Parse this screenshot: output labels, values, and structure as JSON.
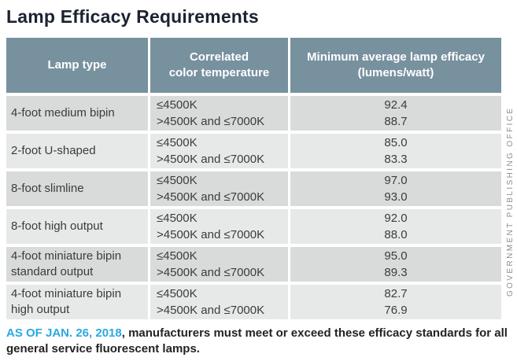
{
  "title": "Lamp Efficacy Requirements",
  "table": {
    "headers": [
      "Lamp type",
      "Correlated\ncolor temperature",
      "Minimum average lamp efficacy\n(lumens/watt)"
    ],
    "rows": [
      {
        "lamp_type": "4-foot medium bipin",
        "temps": [
          "≤4500K",
          ">4500K and ≤7000K"
        ],
        "efficacy": [
          "92.4",
          "88.7"
        ]
      },
      {
        "lamp_type": "2-foot U-shaped",
        "temps": [
          "≤4500K",
          ">4500K and ≤7000K"
        ],
        "efficacy": [
          "85.0",
          "83.3"
        ]
      },
      {
        "lamp_type": "8-foot slimline",
        "temps": [
          "≤4500K",
          ">4500K and ≤7000K"
        ],
        "efficacy": [
          "97.0",
          "93.0"
        ]
      },
      {
        "lamp_type": "8-foot high output",
        "temps": [
          "≤4500K",
          ">4500K and ≤7000K"
        ],
        "efficacy": [
          "92.0",
          "88.0"
        ]
      },
      {
        "lamp_type": "4-foot miniature bipin standard output",
        "temps": [
          "≤4500K",
          ">4500K and ≤7000K"
        ],
        "efficacy": [
          "95.0",
          "89.3"
        ]
      },
      {
        "lamp_type": "4-foot miniature bipin high output",
        "temps": [
          "≤4500K",
          ">4500K and ≤7000K"
        ],
        "efficacy": [
          "82.7",
          "76.9"
        ]
      }
    ]
  },
  "footnote": {
    "highlight": "AS OF JAN. 26, 2018",
    "rest": ", manufacturers must meet or exceed these efficacy standards for all general service fluorescent lamps."
  },
  "credit": "GOVERNMENT PUBLISHING OFFICE",
  "colors": {
    "header_bg": "#78919f",
    "row_dark": "#d9dbdb",
    "row_light": "#e7e9e9",
    "accent_blue": "#29a9e1",
    "title_color": "#1c2231",
    "credit_gray": "#8c8c8c"
  },
  "chart_data": {
    "type": "table",
    "title": "Lamp Efficacy Requirements",
    "columns": [
      "Lamp type",
      "Correlated color temperature",
      "Minimum average lamp efficacy (lumens/watt)"
    ],
    "rows": [
      [
        "4-foot medium bipin",
        "≤4500K",
        92.4
      ],
      [
        "4-foot medium bipin",
        ">4500K and ≤7000K",
        88.7
      ],
      [
        "2-foot U-shaped",
        "≤4500K",
        85.0
      ],
      [
        "2-foot U-shaped",
        ">4500K and ≤7000K",
        83.3
      ],
      [
        "8-foot slimline",
        "≤4500K",
        97.0
      ],
      [
        "8-foot slimline",
        ">4500K and ≤7000K",
        93.0
      ],
      [
        "8-foot high output",
        "≤4500K",
        92.0
      ],
      [
        "8-foot high output",
        ">4500K and ≤7000K",
        88.0
      ],
      [
        "4-foot miniature bipin standard output",
        "≤4500K",
        95.0
      ],
      [
        "4-foot miniature bipin standard output",
        ">4500K and ≤7000K",
        89.3
      ],
      [
        "4-foot miniature bipin high output",
        "≤4500K",
        82.7
      ],
      [
        "4-foot miniature bipin high output",
        ">4500K and ≤7000K",
        76.9
      ]
    ],
    "note": "AS OF JAN. 26, 2018, manufacturers must meet or exceed these efficacy standards for all general service fluorescent lamps.",
    "credit": "GOVERNMENT PUBLISHING OFFICE"
  }
}
